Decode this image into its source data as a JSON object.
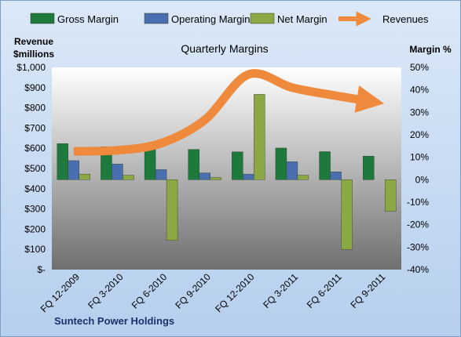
{
  "chart_data": {
    "type": "bar",
    "title": "Quarterly Margins",
    "categories": [
      "FQ 12-2009",
      "FQ 3-2010",
      "FQ 6-2010",
      "FQ 9-2010",
      "FQ 12-2010",
      "FQ 3-2011",
      "FQ 6-2011",
      "FQ 9-2011"
    ],
    "series": [
      {
        "name": "Gross Margin",
        "color": "#1e7a3c",
        "axis": "right",
        "values": [
          16.1,
          14.7,
          13.8,
          13.5,
          12.4,
          14.1,
          12.5,
          10.5
        ]
      },
      {
        "name": "Operating Margin",
        "color": "#4a6fb0",
        "axis": "right",
        "values": [
          8.5,
          7.0,
          4.5,
          3.0,
          2.5,
          8.0,
          3.5,
          0.0
        ]
      },
      {
        "name": "Net Margin",
        "color": "#8aa844",
        "axis": "right",
        "values": [
          2.5,
          2.0,
          -27.0,
          1.0,
          38.0,
          2.0,
          -31.0,
          -14.0
        ]
      },
      {
        "name": "Revenues",
        "color": "#ef8a3d",
        "axis": "left",
        "type": "line",
        "values": [
          585,
          590,
          625,
          740,
          965,
          900,
          860,
          830
        ]
      }
    ],
    "y_left": {
      "title": "Revenue $millions",
      "title_lines": [
        "Revenue",
        "$millions"
      ],
      "ticks": [
        "$-",
        "$100",
        "$200",
        "$300",
        "$400",
        "$500",
        "$600",
        "$700",
        "$800",
        "$900",
        "$1,000"
      ],
      "range": [
        0,
        1000
      ]
    },
    "y_right": {
      "title": "Margin %",
      "ticks": [
        "-40%",
        "-30%",
        "-20%",
        "-10%",
        "0%",
        "10%",
        "20%",
        "30%",
        "40%",
        "50%"
      ],
      "range": [
        -40,
        50
      ]
    },
    "legend_position": "top",
    "grid": false
  },
  "footer": {
    "company": "Suntech Power Holdings"
  }
}
